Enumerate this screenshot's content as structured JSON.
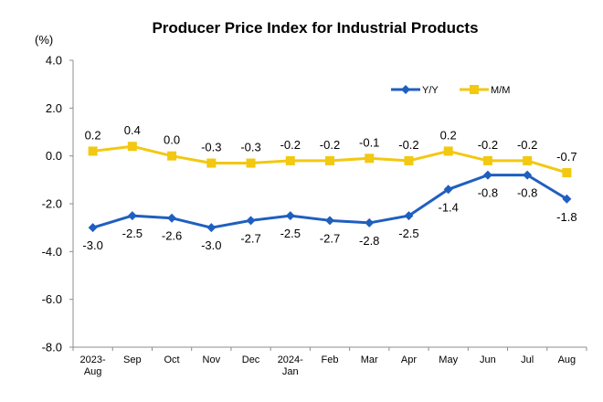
{
  "chart_data": {
    "type": "line",
    "title": "Producer Price Index for Industrial Products",
    "unit": "(%)",
    "ylim": [
      -8.0,
      4.0
    ],
    "yticks": [
      "4.0",
      "2.0",
      "0.0",
      "-2.0",
      "-4.0",
      "-6.0",
      "-8.0"
    ],
    "ytick_values": [
      4,
      2,
      0,
      -2,
      -4,
      -6,
      -8
    ],
    "categories": [
      [
        "2023-",
        "Aug"
      ],
      [
        "Sep"
      ],
      [
        "Oct"
      ],
      [
        "Nov"
      ],
      [
        "Dec"
      ],
      [
        "2024-",
        "Jan"
      ],
      [
        "Feb"
      ],
      [
        "Mar"
      ],
      [
        "Apr"
      ],
      [
        "May"
      ],
      [
        "Jun"
      ],
      [
        "Jul"
      ],
      [
        "Aug"
      ]
    ],
    "grid": false,
    "legend_position": "top-right",
    "series": [
      {
        "name": "Y/Y",
        "color": "#1F5FBF",
        "marker": "diamond",
        "values": [
          -3.0,
          -2.5,
          -2.6,
          -3.0,
          -2.7,
          -2.5,
          -2.7,
          -2.8,
          -2.5,
          -1.4,
          -0.8,
          -0.8,
          -1.8
        ],
        "labels": [
          "-3.0",
          "-2.5",
          "-2.6",
          "-3.0",
          "-2.7",
          "-2.5",
          "-2.7",
          "-2.8",
          "-2.5",
          "-1.4",
          "-0.8",
          "-0.8",
          "-1.8"
        ]
      },
      {
        "name": "M/M",
        "color": "#F2C811",
        "marker": "square",
        "values": [
          0.2,
          0.4,
          0.0,
          -0.3,
          -0.3,
          -0.2,
          -0.2,
          -0.1,
          -0.2,
          0.2,
          -0.2,
          -0.2,
          -0.7
        ],
        "labels": [
          "0.2",
          "0.4",
          "0.0",
          "-0.3",
          "-0.3",
          "-0.2",
          "-0.2",
          "-0.1",
          "-0.2",
          "0.2",
          "-0.2",
          "-0.2",
          "-0.7"
        ]
      }
    ]
  }
}
